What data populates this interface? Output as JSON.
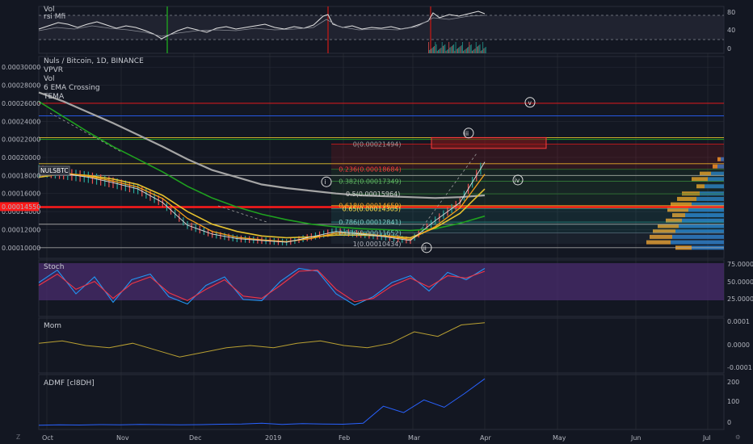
{
  "colors": {
    "bg": "#131722",
    "grid": "#2a2e39",
    "text": "#b2b5be",
    "price": "#b8b8b8",
    "ema_long": "#9e9e9e",
    "ema_mid": "#1fa11f",
    "ema_fast": "#e5c12e",
    "tema": "#f7a21b",
    "red": "#ff1a1a",
    "stoch_k": "#2196f3",
    "stoch_d": "#f23645",
    "stoch_band": "#4a2c6d",
    "mom": "#b9a032",
    "admf": "#2962ff",
    "vpvr_up": "#2979c4",
    "vpvr_down": "#e69a2a"
  },
  "panels": {
    "vol_rsi": {
      "labels": [
        "Vol",
        "rsi Mfi"
      ],
      "scale": [
        "80",
        "40",
        "0"
      ]
    },
    "price": {
      "title": "Nuls / Bitcoin, 1D, BINANCE",
      "indicators": [
        "VPVR",
        "Vol",
        "6 EMA Crossing",
        "TEMA"
      ],
      "symbol_tag": "NULSBTC",
      "last_price": "0.00014550"
    },
    "stoch": {
      "label": "Stoch",
      "scale": [
        "75.0000",
        "50.0000",
        "25.0000"
      ]
    },
    "mom": {
      "label": "Mom",
      "scale": [
        "0.0001",
        "0.0000",
        "-0.0001"
      ]
    },
    "admf": {
      "label": "ADMF [cl8DH]",
      "scale": [
        "200",
        "100",
        "0"
      ]
    }
  },
  "x_axis": [
    "Oct",
    "Nov",
    "Dec",
    "2019",
    "Feb",
    "Mar",
    "Apr",
    "May",
    "Jun",
    "Jul"
  ],
  "wave_labels": [
    "i",
    "ii",
    "iii",
    "iv",
    "v"
  ],
  "fib_labels": [
    "0(0.00021494)",
    "0.236(0.00018684)",
    "0.382(0.00017349)",
    "0.5(0.00015964)",
    "0.618(0.00014659)",
    "0.65(0.00014305)",
    "0.786(0.00012841)",
    "0.886(0.00011652)",
    "1(0.00010434)"
  ],
  "chart_data": {
    "type": "line",
    "title": "Nuls / Bitcoin, 1D, BINANCE",
    "y_ticks": [
      "0.00030000",
      "0.00028000",
      "0.00026000",
      "0.00024000",
      "0.00022000",
      "0.00020000",
      "0.00018000",
      "0.00016000",
      "0.00014000",
      "0.00012000",
      "0.00010000"
    ],
    "ylim": [
      9e-05,
      0.00031
    ],
    "x": [
      "Oct 1",
      "Oct 10",
      "Oct 20",
      "Nov 1",
      "Nov 10",
      "Nov 20",
      "Dec 1",
      "Dec 10",
      "Dec 20",
      "Jan 1",
      "Jan 10",
      "Jan 20",
      "Feb 1",
      "Feb 10",
      "Feb 20",
      "Mar 1",
      "Mar 10",
      "Mar 20",
      "Mar 28"
    ],
    "series": [
      {
        "name": "NULSBTC",
        "values": [
          0.000185,
          0.000182,
          0.000178,
          0.000172,
          0.000165,
          0.00015,
          0.000125,
          0.000115,
          0.00011,
          0.000108,
          0.000106,
          0.000112,
          0.000118,
          0.000115,
          0.000112,
          0.000108,
          0.00013,
          0.00015,
          0.000195
        ]
      }
    ],
    "ema_long": [
      0.000272,
      0.000262,
      0.00025,
      0.000238,
      0.000225,
      0.000212,
      0.000198,
      0.000186,
      0.000178,
      0.00017,
      0.000166,
      0.000163,
      0.00016,
      0.000158,
      0.000157,
      0.000156,
      0.000155,
      0.000156,
      0.000158
    ],
    "ema_mid": [
      0.000262,
      0.000245,
      0.000228,
      0.000212,
      0.000198,
      0.000184,
      0.000168,
      0.000155,
      0.000145,
      0.000137,
      0.000131,
      0.000126,
      0.000123,
      0.000121,
      0.00012,
      0.000119,
      0.000121,
      0.000127,
      0.000135
    ],
    "ema_fast": [
      0.000178,
      0.000182,
      0.00018,
      0.000176,
      0.00017,
      0.000158,
      0.00014,
      0.000126,
      0.000118,
      0.000113,
      0.000111,
      0.000112,
      0.000114,
      0.000114,
      0.000113,
      0.000111,
      0.000122,
      0.000138,
      0.000165
    ],
    "horizontal_levels": [
      {
        "value": 0.00026,
        "color": "#ff1a1a"
      },
      {
        "value": 0.000246,
        "color": "#2962ff"
      },
      {
        "value": 0.000222,
        "color": "#e5c12e"
      },
      {
        "value": 0.00022,
        "color": "#1fa11f"
      },
      {
        "value": 0.000193,
        "color": "#e5c12e"
      },
      {
        "value": 0.00018,
        "color": "#9e9e9e"
      },
      {
        "value": 0.000145,
        "color": "#ff1a1a"
      },
      {
        "value": 0.000126,
        "color": "#9e9e9e"
      },
      {
        "value": 0.0001,
        "color": "#9e9e9e"
      }
    ],
    "fib_levels": [
      0.00021494,
      0.00018684,
      0.00017349,
      0.00015964,
      0.00014659,
      0.00014305,
      0.00012841,
      0.00011652,
      0.00010434
    ],
    "stoch": {
      "ylim": [
        0,
        100
      ],
      "k": [
        60,
        82,
        40,
        70,
        25,
        65,
        75,
        35,
        22,
        55,
        70,
        30,
        28,
        62,
        85,
        80,
        40,
        20,
        35,
        60,
        72,
        45,
        78,
        65,
        85
      ],
      "d": [
        55,
        75,
        48,
        62,
        32,
        58,
        70,
        42,
        28,
        48,
        65,
        36,
        32,
        55,
        80,
        82,
        48,
        26,
        32,
        54,
        68,
        52,
        72,
        68,
        80
      ]
    },
    "mom": {
      "ylim": [
        -0.00012,
        0.00012
      ],
      "values": [
        1e-05,
        2e-05,
        0.0,
        -1e-05,
        1e-05,
        -2e-05,
        -5e-05,
        -3e-05,
        -1e-05,
        0.0,
        -1e-05,
        1e-05,
        2e-05,
        0.0,
        -1e-05,
        1e-05,
        6e-05,
        4e-05,
        9e-05,
        0.0001
      ]
    },
    "admf": {
      "ylim": [
        -20,
        240
      ],
      "values": [
        0,
        2,
        1,
        3,
        2,
        4,
        3,
        2,
        3,
        5,
        6,
        10,
        4,
        8,
        6,
        5,
        10,
        90,
        60,
        120,
        85,
        150,
        220
      ]
    }
  }
}
